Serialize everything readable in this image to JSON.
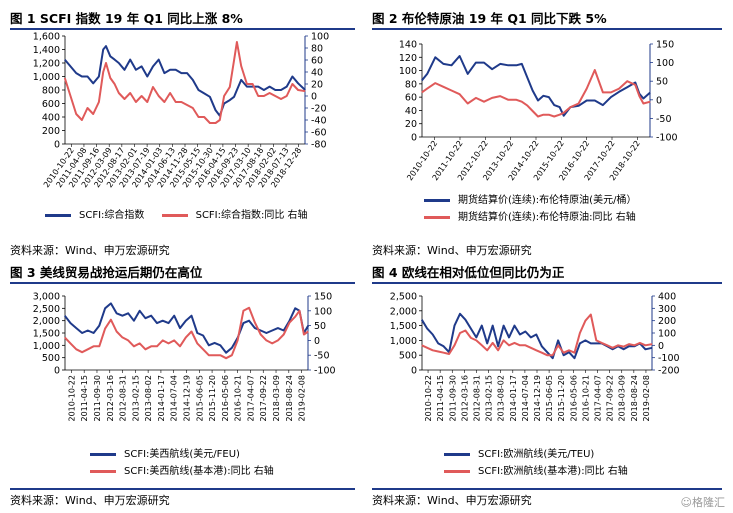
{
  "colors": {
    "blue": "#1f3a8a",
    "red": "#e05a5a",
    "accent": "#1f3a8a"
  },
  "watermark": "☺格隆汇",
  "panels": [
    {
      "title": "图 1 SCFI 指数 19 年 Q1 同比上涨 8%",
      "source": "资料来源：Wind、申万宏源研究",
      "legend": [
        "SCFI:综合指数",
        "SCFI:综合指数:同比 右轴"
      ]
    },
    {
      "title": "图 2 布伦特原油 19 年 Q1 同比下跌 5%",
      "source": "资料来源：Wind、申万宏源研究",
      "legend": [
        "期货结算价(连续):布伦特原油(美元/桶）",
        "期货结算价(连续):布伦特原油:同比 右轴"
      ]
    },
    {
      "title": "图 3 美线贸易战抢运后期仍在高位",
      "source": "资料来源：Wind、申万宏源研究",
      "legend": [
        "SCFI:美西航线(美元/FEU)",
        "SCFI:美西航线(基本港):同比 右轴"
      ]
    },
    {
      "title": "图 4 欧线在相对低位但同比仍为正",
      "source": "资料来源：Wind、申万宏源研究",
      "legend": [
        "SCFI:欧洲航线(美元/TEU)",
        "SCFI:欧洲航线(基本港):同比 右轴"
      ]
    }
  ],
  "chart_data": [
    {
      "type": "line",
      "title": "SCFI 指数 19 年 Q1 同比上涨 8%",
      "left_ticks": [
        "1,600",
        "1,400",
        "1,200",
        "1,000",
        "800",
        "600",
        "400",
        "200",
        "0"
      ],
      "right_ticks": [
        "100",
        "80",
        "60",
        "40",
        "20",
        "0",
        "-20",
        "-40",
        "-60",
        "-80"
      ],
      "ylim_left": [
        0,
        1600
      ],
      "ylim_right": [
        -80,
        100
      ],
      "x_range": [
        "2010-10-22",
        "2019-03-29"
      ],
      "x_tick_labels": [
        "2010-10-22",
        "2011-04-08",
        "2011-09-16",
        "2012-03-09",
        "2012-08-17",
        "2013-02-01",
        "2013-07-19",
        "2014-01-03",
        "2014-06-13",
        "2014-11-28",
        "2015-05-15",
        "2015-10-30",
        "2016-04-15",
        "2016-09-23",
        "2017-03-10",
        "2017-08-18",
        "2018-02-02",
        "2018-07-13",
        "2018-12-28"
      ],
      "series": [
        {
          "name": "SCFI:综合指数",
          "axis": "left",
          "color": "#1f3a8a",
          "x": [
            2010.8,
            2011.0,
            2011.2,
            2011.4,
            2011.6,
            2011.8,
            2012.0,
            2012.15,
            2012.25,
            2012.4,
            2012.55,
            2012.7,
            2012.9,
            2013.1,
            2013.3,
            2013.5,
            2013.7,
            2013.9,
            2014.1,
            2014.3,
            2014.5,
            2014.7,
            2014.9,
            2015.1,
            2015.3,
            2015.5,
            2015.7,
            2015.9,
            2016.1,
            2016.25,
            2016.4,
            2016.6,
            2016.75,
            2016.85,
            2017.0,
            2017.2,
            2017.4,
            2017.6,
            2017.8,
            2018.0,
            2018.2,
            2018.4,
            2018.6,
            2018.8,
            2019.0,
            2019.25
          ],
          "y": [
            1250,
            1150,
            1050,
            1000,
            1000,
            900,
            1000,
            1400,
            1450,
            1300,
            1250,
            1200,
            1100,
            1250,
            1100,
            1150,
            1000,
            1150,
            1250,
            1050,
            1100,
            1100,
            1050,
            1050,
            950,
            800,
            750,
            700,
            500,
            420,
            600,
            650,
            700,
            800,
            950,
            850,
            850,
            850,
            800,
            850,
            800,
            800,
            850,
            1000,
            900,
            800
          ]
        },
        {
          "name": "SCFI:综合指数:同比 右轴",
          "axis": "right",
          "color": "#e05a5a",
          "x": [
            2010.8,
            2011.0,
            2011.2,
            2011.4,
            2011.6,
            2011.8,
            2012.0,
            2012.15,
            2012.25,
            2012.4,
            2012.55,
            2012.7,
            2012.9,
            2013.1,
            2013.3,
            2013.5,
            2013.7,
            2013.9,
            2014.1,
            2014.3,
            2014.5,
            2014.7,
            2014.9,
            2015.1,
            2015.3,
            2015.5,
            2015.7,
            2015.9,
            2016.1,
            2016.25,
            2016.4,
            2016.6,
            2016.75,
            2016.85,
            2017.0,
            2017.2,
            2017.4,
            2017.6,
            2017.8,
            2018.0,
            2018.2,
            2018.4,
            2018.6,
            2018.8,
            2019.0,
            2019.25
          ],
          "y": [
            30,
            0,
            -30,
            -40,
            -20,
            -30,
            -10,
            40,
            55,
            30,
            20,
            5,
            -5,
            5,
            -10,
            0,
            -10,
            15,
            0,
            -10,
            5,
            -10,
            -10,
            -15,
            -20,
            -35,
            -35,
            -45,
            -45,
            -40,
            0,
            15,
            60,
            90,
            50,
            20,
            20,
            0,
            0,
            5,
            0,
            -5,
            0,
            20,
            10,
            8
          ]
        }
      ]
    },
    {
      "type": "line",
      "title": "布伦特原油 19 年 Q1 同比下跌 5%",
      "left_ticks": [
        "140",
        "120",
        "100",
        "80",
        "60",
        "40",
        "20",
        "0"
      ],
      "right_ticks": [
        "150",
        "100",
        "50",
        "0",
        "-50",
        "-100"
      ],
      "ylim_left": [
        0,
        140
      ],
      "ylim_right": [
        -100,
        150
      ],
      "x_range": [
        "2010-10-22",
        "2019-03-29"
      ],
      "x_tick_labels": [
        "2010-10-22",
        "2011-10-22",
        "2012-10-22",
        "2013-10-22",
        "2014-10-22",
        "2015-10-22",
        "2016-10-22",
        "2017-10-22",
        "2018-10-22"
      ],
      "series": [
        {
          "name": "期货结算价(连续):布伦特原油(美元/桶）",
          "axis": "left",
          "color": "#1f3a8a",
          "x": [
            2010.8,
            2011.0,
            2011.3,
            2011.6,
            2011.9,
            2012.2,
            2012.5,
            2012.8,
            2013.1,
            2013.4,
            2013.7,
            2014.0,
            2014.3,
            2014.5,
            2014.7,
            2014.9,
            2015.1,
            2015.3,
            2015.5,
            2015.7,
            2015.9,
            2016.05,
            2016.3,
            2016.6,
            2016.9,
            2017.2,
            2017.5,
            2017.8,
            2018.1,
            2018.4,
            2018.7,
            2018.85,
            2019.0,
            2019.25
          ],
          "y": [
            85,
            95,
            120,
            110,
            108,
            122,
            95,
            112,
            112,
            102,
            110,
            108,
            108,
            110,
            90,
            70,
            55,
            62,
            60,
            48,
            45,
            32,
            45,
            47,
            55,
            55,
            48,
            60,
            68,
            75,
            82,
            65,
            58,
            67
          ]
        },
        {
          "name": "期货结算价(连续):布伦特原油:同比 右轴",
          "axis": "right",
          "color": "#e05a5a",
          "x": [
            2010.8,
            2011.0,
            2011.3,
            2011.6,
            2011.9,
            2012.2,
            2012.5,
            2012.8,
            2013.1,
            2013.4,
            2013.7,
            2014.0,
            2014.3,
            2014.5,
            2014.7,
            2014.9,
            2015.1,
            2015.3,
            2015.5,
            2015.7,
            2015.9,
            2016.05,
            2016.3,
            2016.6,
            2016.9,
            2017.2,
            2017.5,
            2017.8,
            2018.1,
            2018.4,
            2018.7,
            2018.85,
            2019.0,
            2019.25
          ],
          "y": [
            20,
            30,
            45,
            35,
            25,
            15,
            -10,
            5,
            -5,
            5,
            10,
            0,
            0,
            -5,
            -15,
            -30,
            -45,
            -40,
            -40,
            -45,
            -40,
            -35,
            -20,
            -10,
            30,
            80,
            20,
            20,
            30,
            50,
            40,
            10,
            -10,
            -5
          ]
        }
      ]
    },
    {
      "type": "line",
      "title": "美线贸易战抢运后期仍在高位",
      "left_ticks": [
        "3,000",
        "2,500",
        "2,000",
        "1,500",
        "1,000",
        "500",
        "0"
      ],
      "right_ticks": [
        "150",
        "100",
        "50",
        "0",
        "-50",
        "-100"
      ],
      "ylim_left": [
        0,
        3000
      ],
      "ylim_right": [
        -100,
        150
      ],
      "x_range": [
        "2010-10-22",
        "2019-03-29"
      ],
      "x_tick_labels": [
        "2010-10-22",
        "2011-04-15",
        "2011-09-30",
        "2012-03-16",
        "2012-08-31",
        "2013-02-15",
        "2013-08-02",
        "2014-01-17",
        "2014-07-04",
        "2014-12-19",
        "2015-06-05",
        "2015-11-20",
        "2016-05-06",
        "2016-10-21",
        "2017-04-07",
        "2017-09-22",
        "2018-03-09",
        "2018-08-24",
        "2019-02-08"
      ],
      "series": [
        {
          "name": "SCFI:美西航线(美元/FEU)",
          "axis": "left",
          "color": "#1f3a8a",
          "x": [
            2010.8,
            2011.0,
            2011.2,
            2011.4,
            2011.6,
            2011.8,
            2012.0,
            2012.2,
            2012.4,
            2012.6,
            2012.8,
            2013.0,
            2013.2,
            2013.4,
            2013.6,
            2013.8,
            2014.0,
            2014.2,
            2014.4,
            2014.6,
            2014.8,
            2015.0,
            2015.2,
            2015.4,
            2015.6,
            2015.8,
            2016.0,
            2016.2,
            2016.4,
            2016.6,
            2016.8,
            2017.0,
            2017.2,
            2017.4,
            2017.6,
            2017.8,
            2018.0,
            2018.2,
            2018.4,
            2018.6,
            2018.8,
            2018.95,
            2019.1,
            2019.25
          ],
          "y": [
            2200,
            1900,
            1700,
            1500,
            1600,
            1500,
            1800,
            2500,
            2700,
            2300,
            2200,
            2300,
            2000,
            2400,
            2100,
            2200,
            1900,
            2000,
            1900,
            2200,
            1700,
            2000,
            2200,
            1500,
            1400,
            1000,
            1100,
            1000,
            700,
            900,
            1300,
            1900,
            2000,
            1700,
            1600,
            1500,
            1600,
            1700,
            1600,
            2000,
            2500,
            2400,
            1500,
            1800
          ]
        },
        {
          "name": "SCFI:美西航线(基本港):同比 右轴",
          "axis": "right",
          "color": "#e05a5a",
          "x": [
            2010.8,
            2011.0,
            2011.2,
            2011.4,
            2011.6,
            2011.8,
            2012.0,
            2012.2,
            2012.4,
            2012.6,
            2012.8,
            2013.0,
            2013.2,
            2013.4,
            2013.6,
            2013.8,
            2014.0,
            2014.2,
            2014.4,
            2014.6,
            2014.8,
            2015.0,
            2015.2,
            2015.4,
            2015.6,
            2015.8,
            2016.0,
            2016.2,
            2016.4,
            2016.6,
            2016.8,
            2017.0,
            2017.2,
            2017.4,
            2017.6,
            2017.8,
            2018.0,
            2018.2,
            2018.4,
            2018.6,
            2018.8,
            2018.95,
            2019.1,
            2019.25
          ],
          "y": [
            10,
            -10,
            -30,
            -40,
            -30,
            -20,
            -20,
            40,
            70,
            30,
            10,
            0,
            -20,
            -10,
            -30,
            -20,
            -20,
            0,
            -10,
            0,
            -20,
            10,
            30,
            -10,
            -30,
            -50,
            -50,
            -50,
            -60,
            -50,
            0,
            100,
            110,
            60,
            20,
            0,
            -10,
            0,
            20,
            60,
            80,
            100,
            20,
            30
          ]
        }
      ]
    },
    {
      "type": "line",
      "title": "欧线在相对低位但同比仍为正",
      "left_ticks": [
        "2,500",
        "2,000",
        "1,500",
        "1,000",
        "500",
        "0"
      ],
      "right_ticks": [
        "400",
        "300",
        "200",
        "100",
        "0",
        "-100",
        "-200"
      ],
      "ylim_left": [
        0,
        2500
      ],
      "ylim_right": [
        -200,
        400
      ],
      "x_range": [
        "2010-10-22",
        "2019-03-29"
      ],
      "x_tick_labels": [
        "2010-10-22",
        "2011-04-15",
        "2011-09-30",
        "2012-03-16",
        "2012-08-31",
        "2013-02-15",
        "2013-08-02",
        "2014-01-17",
        "2014-07-04",
        "2014-12-19",
        "2015-06-05",
        "2015-11-20",
        "2016-05-06",
        "2016-10-21",
        "2017-04-07",
        "2017-09-22",
        "2018-03-09",
        "2018-08-24",
        "2019-02-08"
      ],
      "series": [
        {
          "name": "SCFI:欧洲航线(美元/TEU)",
          "axis": "left",
          "color": "#1f3a8a",
          "x": [
            2010.8,
            2011.0,
            2011.2,
            2011.4,
            2011.6,
            2011.8,
            2012.0,
            2012.2,
            2012.4,
            2012.6,
            2012.8,
            2013.0,
            2013.2,
            2013.4,
            2013.6,
            2013.8,
            2014.0,
            2014.2,
            2014.4,
            2014.6,
            2014.8,
            2015.0,
            2015.2,
            2015.4,
            2015.6,
            2015.8,
            2016.0,
            2016.2,
            2016.4,
            2016.6,
            2016.8,
            2017.0,
            2017.2,
            2017.4,
            2017.6,
            2017.8,
            2018.0,
            2018.2,
            2018.4,
            2018.6,
            2018.8,
            2019.0,
            2019.25
          ],
          "y": [
            1700,
            1400,
            1200,
            900,
            800,
            600,
            1500,
            1900,
            1700,
            1400,
            1100,
            1500,
            900,
            1500,
            800,
            1500,
            1100,
            1500,
            1200,
            1300,
            1100,
            1200,
            800,
            600,
            400,
            1000,
            500,
            600,
            400,
            900,
            1000,
            900,
            900,
            900,
            800,
            700,
            800,
            700,
            800,
            800,
            900,
            700,
            750
          ]
        },
        {
          "name": "SCFI:欧洲航线(基本港):同比 右轴",
          "axis": "right",
          "color": "#e05a5a",
          "x": [
            2010.8,
            2011.0,
            2011.2,
            2011.4,
            2011.6,
            2011.8,
            2012.0,
            2012.2,
            2012.4,
            2012.6,
            2012.8,
            2013.0,
            2013.2,
            2013.4,
            2013.6,
            2013.8,
            2014.0,
            2014.2,
            2014.4,
            2014.6,
            2014.8,
            2015.0,
            2015.2,
            2015.4,
            2015.6,
            2015.8,
            2016.0,
            2016.2,
            2016.4,
            2016.6,
            2016.8,
            2017.0,
            2017.2,
            2017.4,
            2017.6,
            2017.8,
            2018.0,
            2018.2,
            2018.4,
            2018.6,
            2018.8,
            2019.0,
            2019.25
          ],
          "y": [
            0,
            -20,
            -40,
            -50,
            -60,
            -70,
            0,
            100,
            120,
            60,
            40,
            0,
            -40,
            20,
            -40,
            40,
            0,
            20,
            0,
            0,
            -20,
            -40,
            -60,
            -80,
            -80,
            0,
            -60,
            -40,
            -60,
            100,
            200,
            250,
            40,
            20,
            0,
            -20,
            0,
            -10,
            10,
            0,
            20,
            0,
            10
          ]
        }
      ]
    }
  ]
}
